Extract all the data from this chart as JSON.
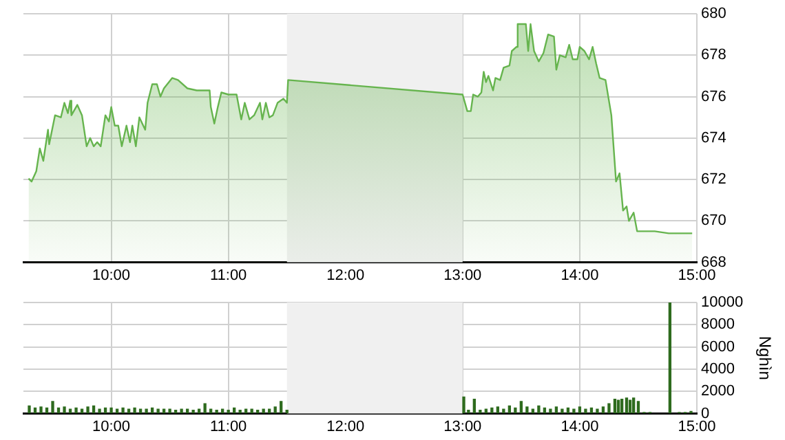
{
  "chart_data": [
    {
      "type": "area",
      "x": [
        9.294,
        9.32,
        9.36,
        9.39,
        9.42,
        9.46,
        9.47,
        9.52,
        9.57,
        9.6,
        9.63,
        9.65,
        9.66,
        9.71,
        9.75,
        9.79,
        9.82,
        9.85,
        9.88,
        9.91,
        9.95,
        9.98,
        10.0,
        10.03,
        10.06,
        10.09,
        10.13,
        10.16,
        10.18,
        10.21,
        10.24,
        10.29,
        10.31,
        10.35,
        10.39,
        10.42,
        10.45,
        10.52,
        10.57,
        10.65,
        10.73,
        10.84,
        10.85,
        10.88,
        10.91,
        10.94,
        11.0,
        11.07,
        11.11,
        11.14,
        11.18,
        11.22,
        11.27,
        11.29,
        11.32,
        11.35,
        11.38,
        11.42,
        11.47,
        11.5,
        11.51,
        13.0,
        13.04,
        13.07,
        13.09,
        13.13,
        13.16,
        13.18,
        13.2,
        13.22,
        13.26,
        13.28,
        13.32,
        13.35,
        13.4,
        13.42,
        13.46,
        13.47,
        13.51,
        13.54,
        13.56,
        13.58,
        13.61,
        13.65,
        13.69,
        13.73,
        13.78,
        13.8,
        13.83,
        13.88,
        13.91,
        13.94,
        13.98,
        14.0,
        14.04,
        14.08,
        14.11,
        14.14,
        14.17,
        14.22,
        14.27,
        14.31,
        14.34,
        14.37,
        14.4,
        14.42,
        14.46,
        14.49,
        14.64,
        14.76,
        14.96
      ],
      "series": [
        {
          "color": "#66b44e",
          "values": [
            672.05,
            671.9,
            672.4,
            673.5,
            672.9,
            674.4,
            673.7,
            675.1,
            675.0,
            675.7,
            675.2,
            675.8,
            675.1,
            675.6,
            675.1,
            673.6,
            674.0,
            673.6,
            673.8,
            673.6,
            675.1,
            674.8,
            675.5,
            674.6,
            674.6,
            673.6,
            674.6,
            673.8,
            674.6,
            673.6,
            675.0,
            674.4,
            675.7,
            676.6,
            676.6,
            676.0,
            676.4,
            676.9,
            676.8,
            676.4,
            676.3,
            676.3,
            675.5,
            674.7,
            675.5,
            676.2,
            676.1,
            676.1,
            674.9,
            675.7,
            674.9,
            675.1,
            675.7,
            674.9,
            675.7,
            675.0,
            675.1,
            675.7,
            675.9,
            675.7,
            676.8,
            676.1,
            675.3,
            675.3,
            676.1,
            676.0,
            676.2,
            677.2,
            676.7,
            677.0,
            676.3,
            676.9,
            676.8,
            677.4,
            677.5,
            678.2,
            678.4,
            679.5,
            679.5,
            679.5,
            678.2,
            679.5,
            678.2,
            677.7,
            678.1,
            679.0,
            678.9,
            677.3,
            678.0,
            677.9,
            678.5,
            677.8,
            677.8,
            678.4,
            678.2,
            677.8,
            678.4,
            677.6,
            676.9,
            676.8,
            675.1,
            671.9,
            672.3,
            670.5,
            670.7,
            670.0,
            670.4,
            669.5,
            669.5,
            669.4,
            669.4
          ]
        }
      ],
      "xlim": [
        9.25,
        15
      ],
      "xticks": [
        {
          "value": 10,
          "label": "10:00"
        },
        {
          "value": 11,
          "label": "11:00"
        },
        {
          "value": 12,
          "label": "12:00"
        },
        {
          "value": 13,
          "label": "13:00"
        },
        {
          "value": 14,
          "label": "14:00"
        },
        {
          "value": 15,
          "label": "15:00"
        }
      ],
      "ylim": [
        668,
        680
      ],
      "yticks": [
        668,
        670,
        672,
        674,
        676,
        678,
        680
      ],
      "bands": [
        {
          "axis": "x",
          "from": 11.5,
          "to": 13,
          "color": "#f0f0f0"
        }
      ],
      "grid": true,
      "marker": "none"
    },
    {
      "type": "bar",
      "ylabel": "Nghìn",
      "x": [
        9.3,
        9.35,
        9.4,
        9.45,
        9.5,
        9.55,
        9.6,
        9.65,
        9.7,
        9.75,
        9.8,
        9.85,
        9.9,
        9.95,
        10.0,
        10.05,
        10.1,
        10.15,
        10.2,
        10.25,
        10.3,
        10.35,
        10.4,
        10.45,
        10.5,
        10.55,
        10.6,
        10.65,
        10.7,
        10.75,
        10.8,
        10.85,
        10.9,
        10.95,
        11.0,
        11.05,
        11.1,
        11.15,
        11.2,
        11.25,
        11.3,
        11.35,
        11.4,
        11.45,
        11.5,
        13.01,
        13.05,
        13.1,
        13.15,
        13.2,
        13.25,
        13.3,
        13.35,
        13.4,
        13.45,
        13.5,
        13.55,
        13.6,
        13.65,
        13.7,
        13.75,
        13.8,
        13.85,
        13.9,
        13.95,
        14.0,
        14.05,
        14.1,
        14.15,
        14.2,
        14.25,
        14.3,
        14.33,
        14.36,
        14.4,
        14.43,
        14.46,
        14.5,
        14.55,
        14.6,
        14.77,
        14.85,
        14.9,
        14.95
      ],
      "series": [
        {
          "color": "#2e6b1e",
          "values": [
            700,
            500,
            600,
            500,
            1100,
            500,
            600,
            400,
            500,
            400,
            600,
            700,
            400,
            500,
            500,
            400,
            500,
            400,
            500,
            400,
            400,
            500,
            400,
            400,
            400,
            300,
            400,
            400,
            300,
            400,
            900,
            400,
            300,
            400,
            300,
            500,
            300,
            400,
            400,
            300,
            400,
            400,
            600,
            1100,
            300,
            1500,
            300,
            1300,
            300,
            400,
            500,
            600,
            400,
            700,
            500,
            1100,
            600,
            400,
            700,
            500,
            400,
            600,
            400,
            500,
            400,
            600,
            400,
            500,
            400,
            600,
            900,
            1300,
            1200,
            1300,
            1400,
            1200,
            1400,
            1100,
            100,
            100,
            10000,
            100,
            100,
            200
          ]
        }
      ],
      "xlim": [
        9.25,
        15
      ],
      "xticks": [
        {
          "value": 10,
          "label": "10:00"
        },
        {
          "value": 11,
          "label": "11:00"
        },
        {
          "value": 12,
          "label": "12:00"
        },
        {
          "value": 13,
          "label": "13:00"
        },
        {
          "value": 14,
          "label": "14:00"
        },
        {
          "value": 15,
          "label": "15:00"
        }
      ],
      "ylim": [
        0,
        10000
      ],
      "yticks": [
        0,
        2000,
        4000,
        6000,
        8000,
        10000
      ],
      "bands": [
        {
          "axis": "x",
          "from": 11.5,
          "to": 13,
          "color": "#f0f0f0"
        }
      ],
      "grid": true
    }
  ]
}
